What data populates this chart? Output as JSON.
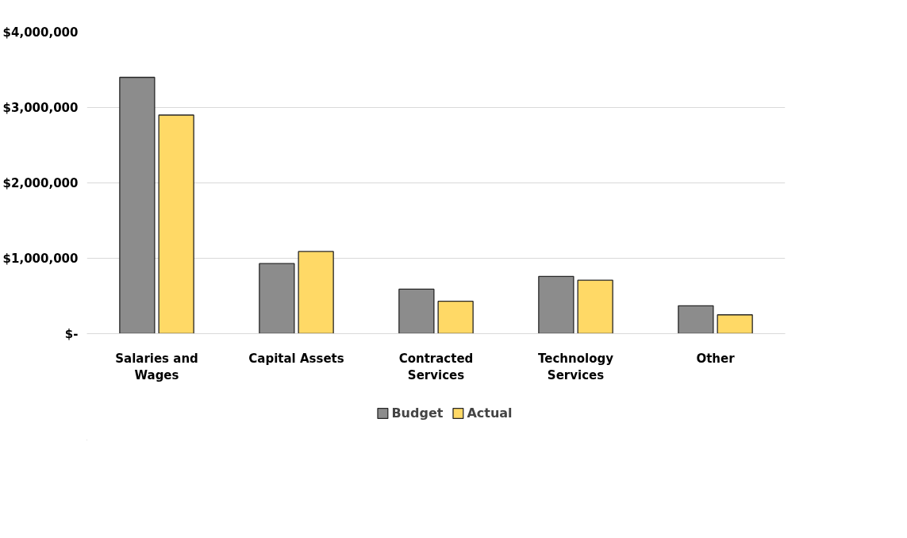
{
  "chart_data": {
    "type": "bar",
    "categories": [
      "Salaries and Wages",
      "Capital Assets",
      "Contracted Services",
      "Technology Services",
      "Other"
    ],
    "series": [
      {
        "name": "Budget",
        "color": "#8c8c8c",
        "values": [
          3400000,
          930000,
          590000,
          760000,
          370000
        ]
      },
      {
        "name": "Actual",
        "color": "#ffd966",
        "values": [
          2900000,
          1090000,
          430000,
          710000,
          250000
        ]
      }
    ],
    "ylim": [
      0,
      4000000
    ],
    "yticks": [
      {
        "value": 0,
        "label": "$-"
      },
      {
        "value": 1000000,
        "label": "$1,000,000"
      },
      {
        "value": 2000000,
        "label": "$2,000,000"
      },
      {
        "value": 3000000,
        "label": "$3,000,000"
      },
      {
        "value": 4000000,
        "label": "$4,000,000"
      }
    ],
    "grid": "y",
    "legend": "bottom"
  }
}
